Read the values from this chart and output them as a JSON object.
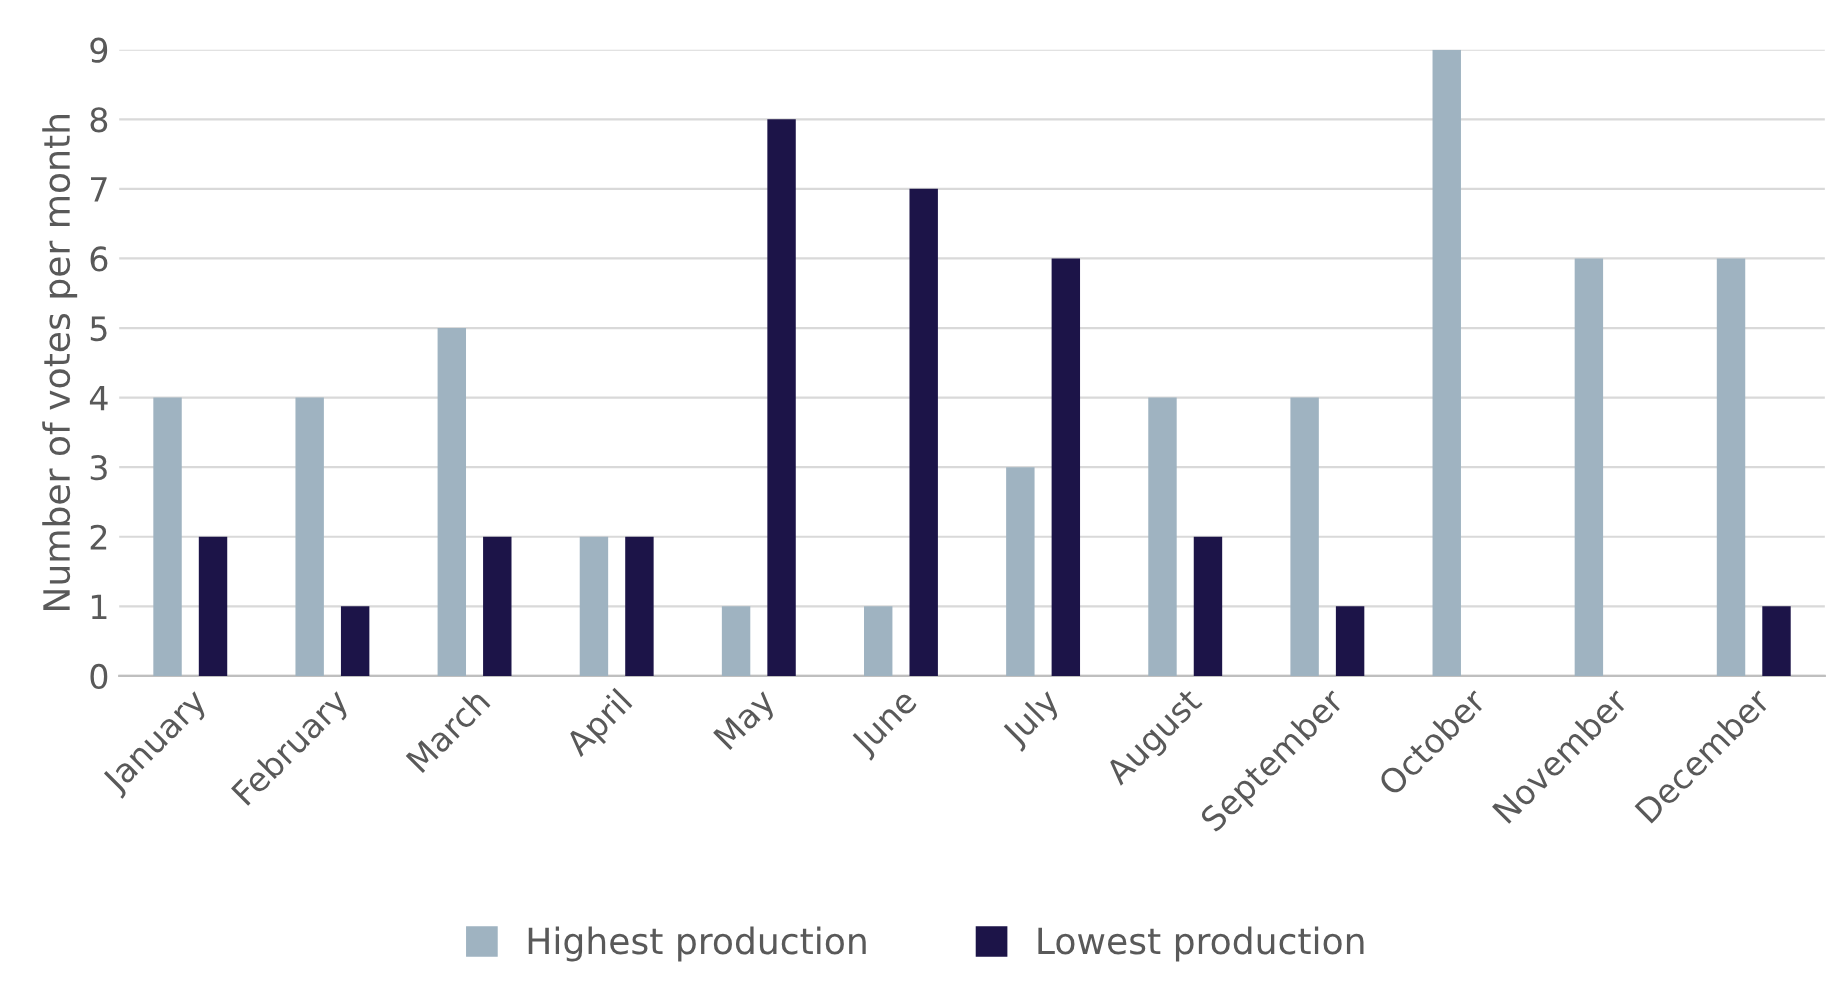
{
  "chart_data": {
    "type": "bar",
    "ylabel": "Number of votes per month",
    "categories": [
      "January",
      "February",
      "March",
      "April",
      "May",
      "June",
      "July",
      "August",
      "September",
      "October",
      "November",
      "December"
    ],
    "series": [
      {
        "name": "Highest production",
        "color": "#9fb3c1",
        "values": [
          4,
          4,
          5,
          2,
          1,
          1,
          3,
          4,
          4,
          9,
          6,
          6
        ]
      },
      {
        "name": "Lowest production",
        "color": "#1c1448",
        "values": [
          2,
          1,
          2,
          2,
          8,
          7,
          6,
          2,
          1,
          0,
          0,
          1
        ]
      }
    ],
    "ylim": [
      0,
      9
    ],
    "yticks": [
      0,
      1,
      2,
      3,
      4,
      5,
      6,
      7,
      8,
      9
    ],
    "grid": "y",
    "legend": "bottom"
  }
}
